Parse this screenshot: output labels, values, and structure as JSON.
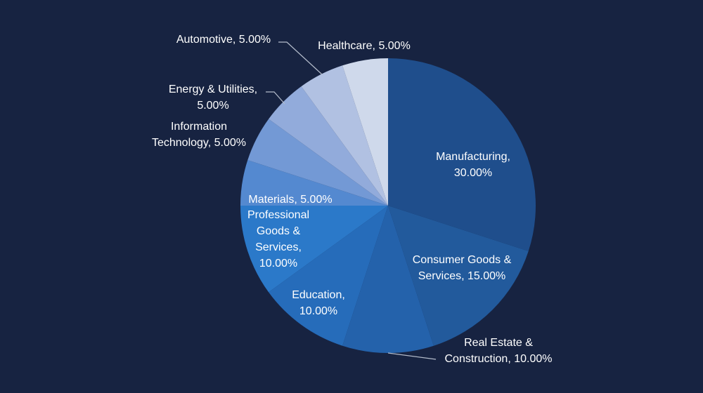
{
  "chart_data": {
    "type": "pie",
    "title": "",
    "start_angle_deg": 0,
    "direction": "clockwise",
    "legend": "none",
    "slices": [
      {
        "label": "Manufacturing",
        "value": 30.0,
        "display": "30.00%",
        "color": "#1F4E8C"
      },
      {
        "label": "Consumer Goods & Services",
        "value": 15.0,
        "display": "15.00%",
        "color": "#225A9C"
      },
      {
        "label": "Real Estate & Construction",
        "value": 10.0,
        "display": "10.00%",
        "color": "#2462AB"
      },
      {
        "label": "Education",
        "value": 10.0,
        "display": "10.00%",
        "color": "#266CBA"
      },
      {
        "label": "Professional Goods & Services",
        "value": 10.0,
        "display": "10.00%",
        "color": "#2B79C9"
      },
      {
        "label": "Materials",
        "value": 5.0,
        "display": "5.00%",
        "color": "#5489D0"
      },
      {
        "label": "Information Technology",
        "value": 5.0,
        "display": "5.00%",
        "color": "#7399D5"
      },
      {
        "label": "Energy & Utilities",
        "value": 5.0,
        "display": "5.00%",
        "color": "#92ABDB"
      },
      {
        "label": "Automotive",
        "value": 5.0,
        "display": "5.00%",
        "color": "#B1C1E2"
      },
      {
        "label": "Healthcare",
        "value": 5.0,
        "display": "5.00%",
        "color": "#CFD9EB"
      }
    ]
  }
}
